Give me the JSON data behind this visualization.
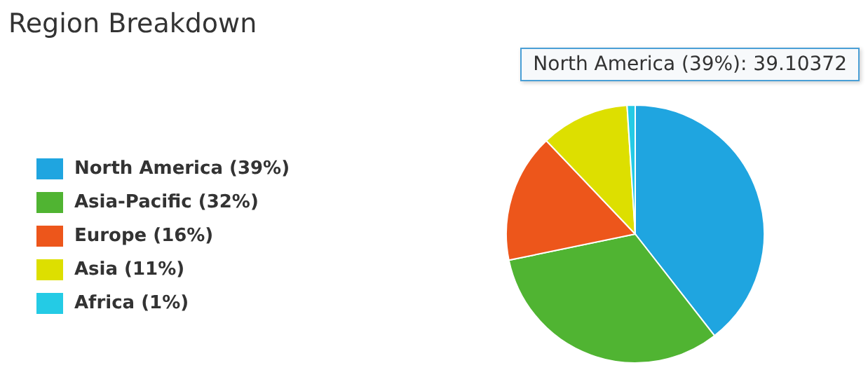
{
  "chart_data": {
    "type": "pie",
    "title": "Region Breakdown",
    "categories": [
      "North America (39%)",
      "Asia-Pacific (32%)",
      "Europe (16%)",
      "Asia (11%)",
      "Africa (1%)"
    ],
    "values": [
      39.10372,
      32,
      16,
      11,
      1
    ],
    "colors": [
      "#1fa5e0",
      "#50b432",
      "#ed561b",
      "#dddf00",
      "#24cbe5"
    ],
    "legend": "left",
    "annotations": [
      "North America (39%): 39.10372"
    ]
  }
}
